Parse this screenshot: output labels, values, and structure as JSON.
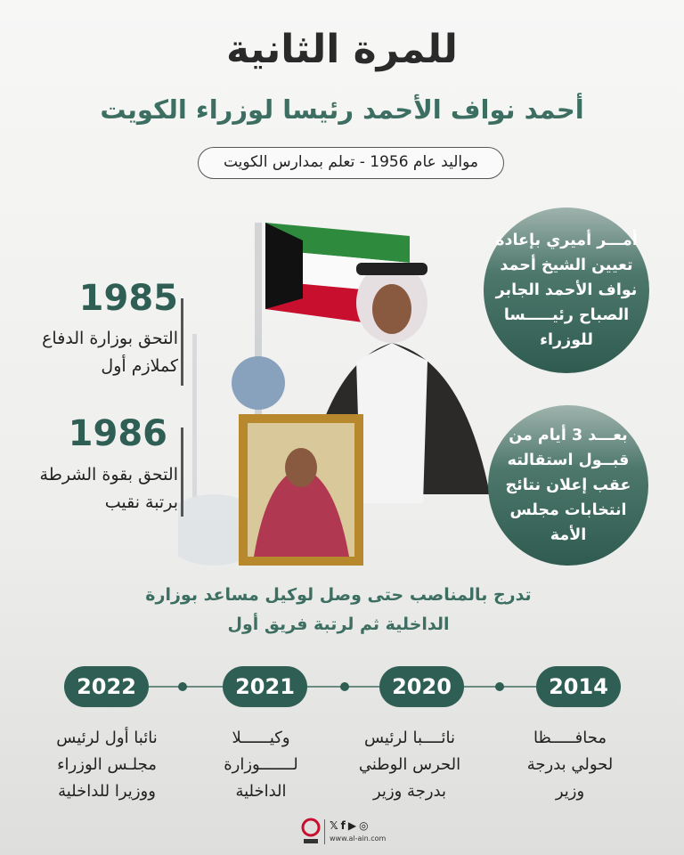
{
  "header": {
    "title": "للمرة الثانية",
    "subtitle": "أحمد نواف الأحمد رئيسا لوزراء الكويت",
    "info": "مواليد عام 1956 - تعلم بمدارس الكويت"
  },
  "left": [
    {
      "year": "1985",
      "lines": [
        "التحق بوزارة الدفاع",
        "كملازم أول"
      ]
    },
    {
      "year": "1986",
      "lines": [
        "التحق بقوة الشرطة",
        "برتبة نقيب"
      ]
    }
  ],
  "circles": [
    {
      "lines": [
        "أمـــر أميري بإعادة",
        "تعيين الشيخ أحمد",
        "نواف الأحمد الجابر",
        "الصباح رئيـــــسا",
        "للوزراء"
      ]
    },
    {
      "lines": [
        "بعـــد 3 أيام من",
        "قبــول استقالته",
        "عقب إعلان نتائج",
        "انتخابات مجلس",
        "الأمة"
      ]
    }
  ],
  "career": [
    "تدرج بالمناصب حتى وصل لوكيل مساعد بوزارة",
    "الداخلية ثم لرتبة فريق أول"
  ],
  "timeline": [
    {
      "year": "2014",
      "lines": [
        "محافـــــظا",
        "لحولي بدرجة",
        "وزير"
      ]
    },
    {
      "year": "2020",
      "lines": [
        "نائــــبا لرئيس",
        "الحرس الوطني",
        "بدرجة وزير"
      ]
    },
    {
      "year": "2021",
      "lines": [
        "وكيــــــلا",
        "لـــــــوزارة",
        "الداخلية"
      ]
    },
    {
      "year": "2022",
      "lines": [
        "نائبا أول لرئيس",
        "مجلـس الوزراء",
        "ووزيرا للداخلية"
      ]
    }
  ],
  "footer": {
    "logo_text": "العين",
    "url": "www.al-ain.com",
    "icons": [
      "twitter-icon",
      "facebook-icon",
      "youtube-icon",
      "instagram-icon"
    ]
  },
  "colors": {
    "accent": "#2f5e55",
    "subtitle": "#3d6e62",
    "frame": "#b8892c"
  }
}
